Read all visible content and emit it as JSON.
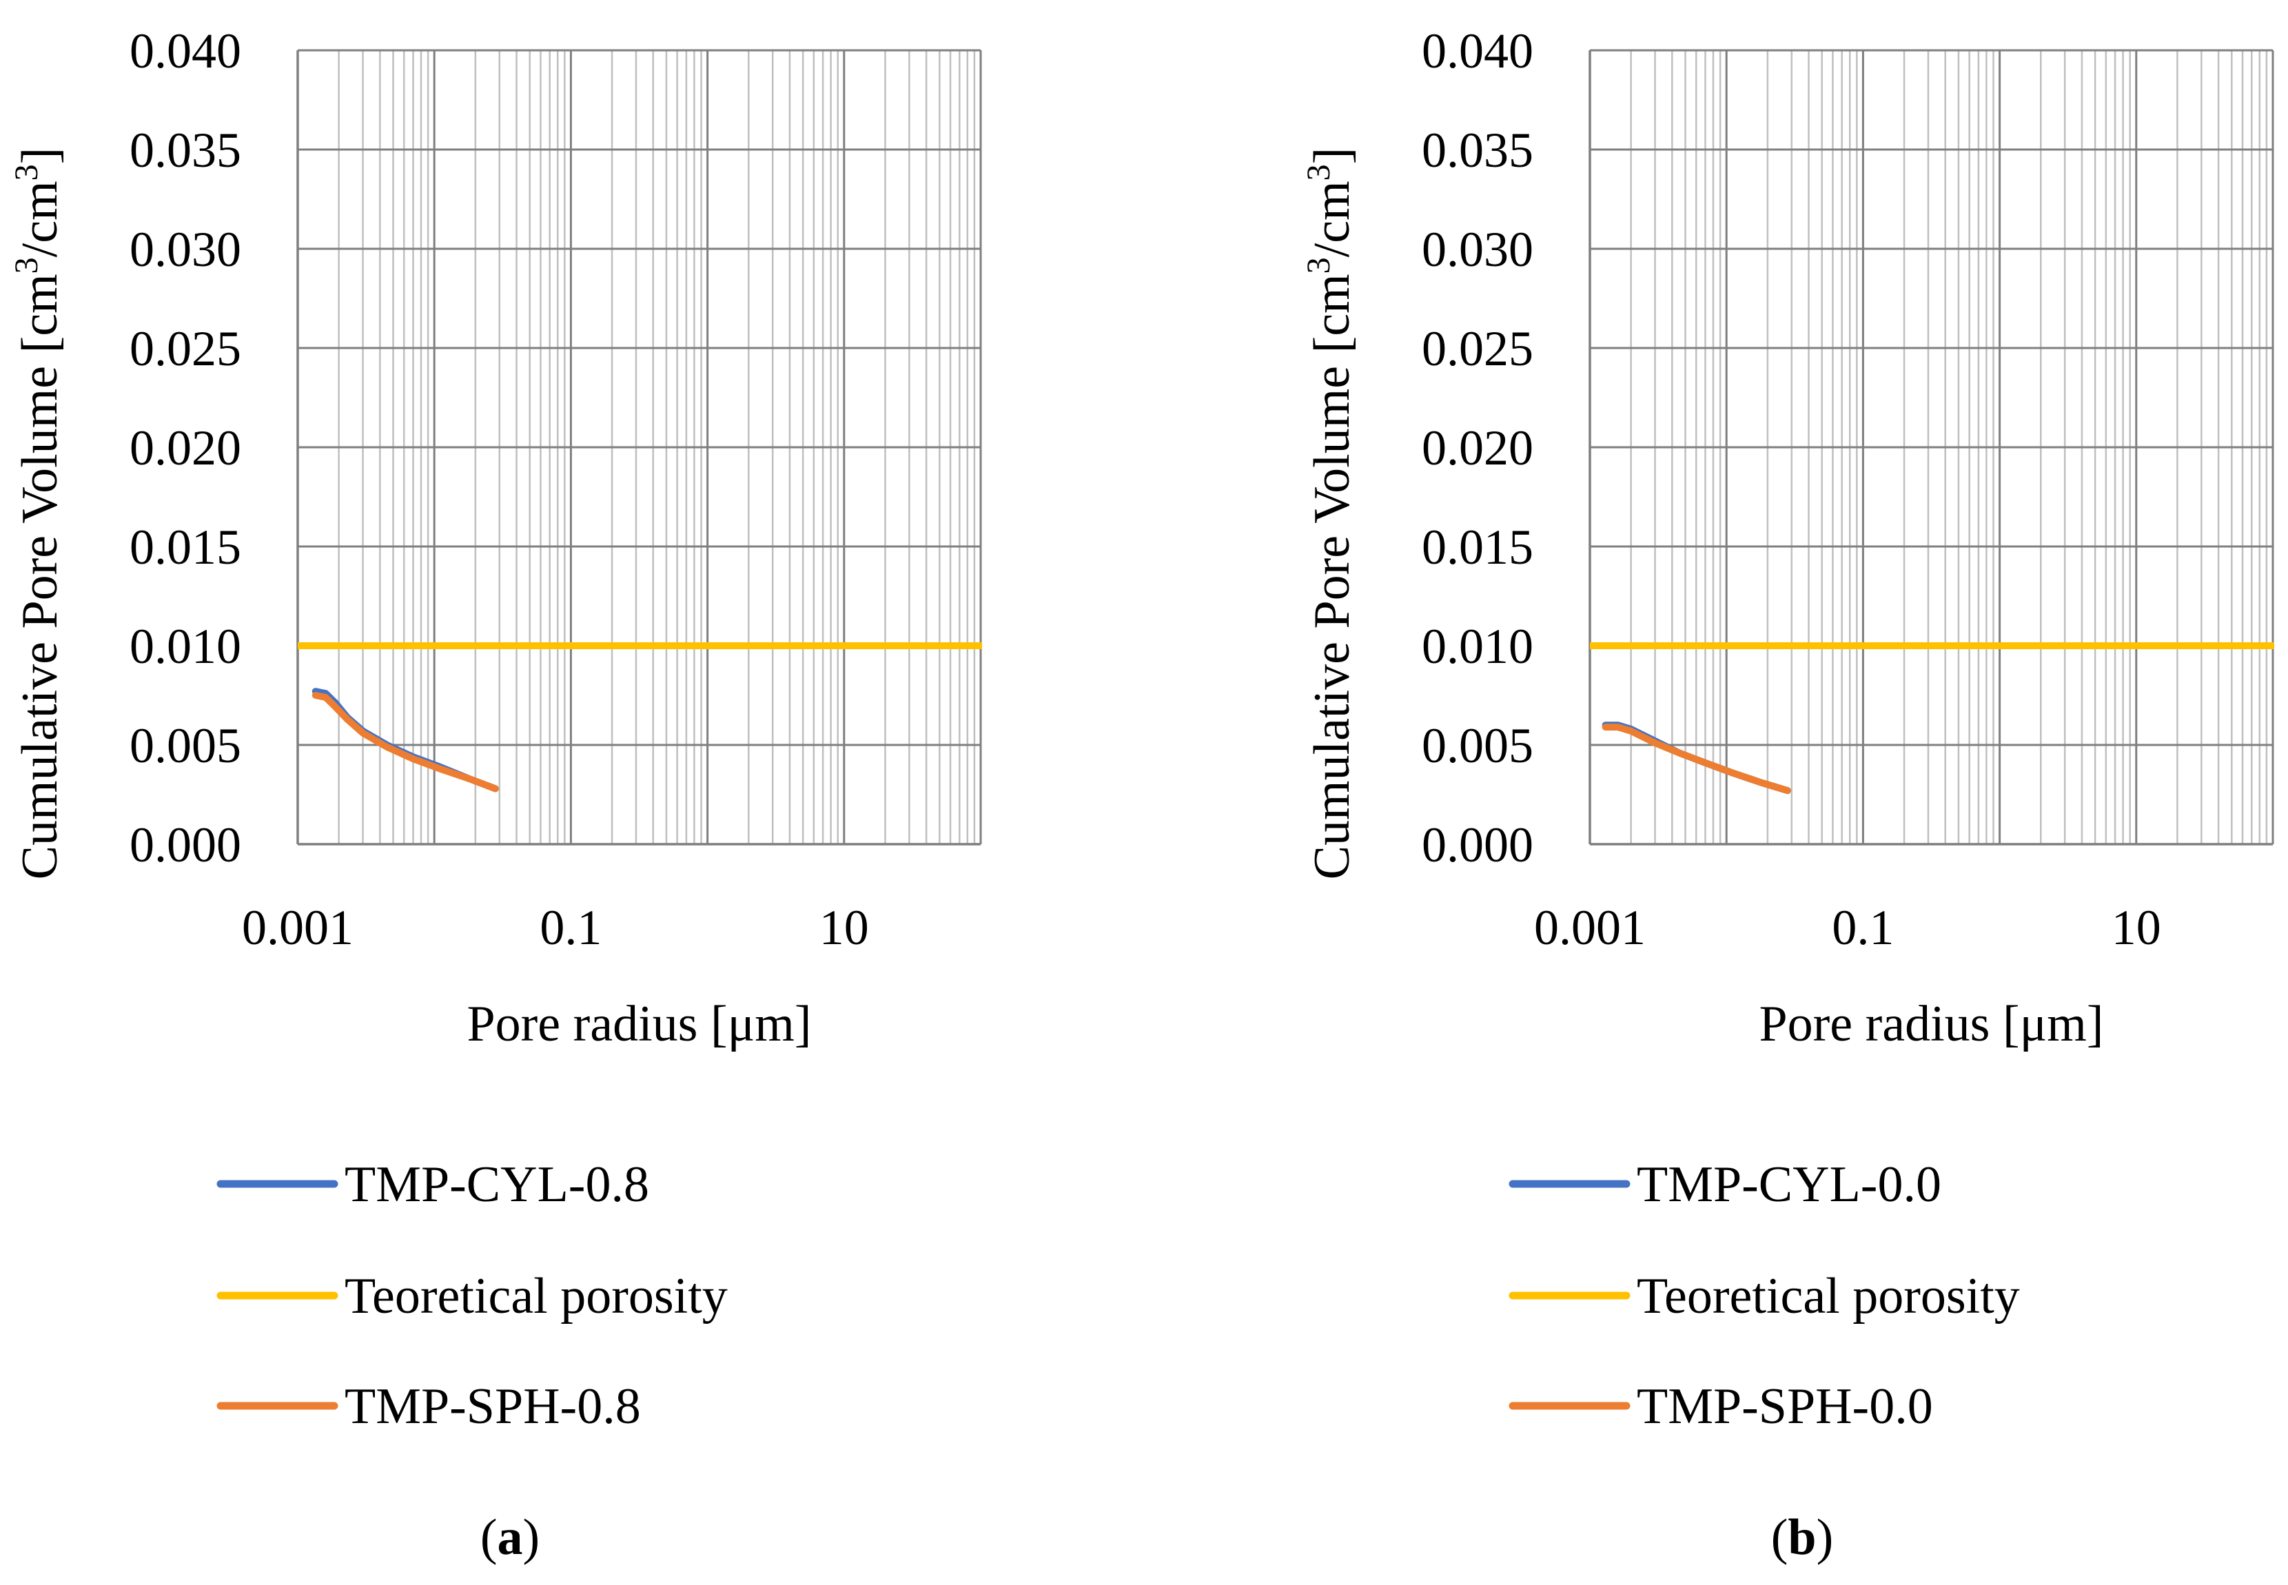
{
  "chart_data": [
    {
      "type": "line",
      "panel": "a",
      "caption_open": "(",
      "caption_letter": "a",
      "caption_close": ")",
      "xlabel": "Pore radius [μm]",
      "ylabel": "Cumulative Pore Volume [cm3/cm3]",
      "ylabel_parts": [
        "Cumulative Pore Volume [cm",
        "3",
        "/cm",
        "3",
        "]"
      ],
      "xscale": "log",
      "xlim": [
        0.001,
        100
      ],
      "ylim": [
        0.0,
        0.04
      ],
      "x_tick_values": [
        0.001,
        0.1,
        10
      ],
      "x_tick_labels": [
        "0.001",
        "0.1",
        "10"
      ],
      "y_tick_values": [
        0.0,
        0.005,
        0.01,
        0.015,
        0.02,
        0.025,
        0.03,
        0.035,
        0.04
      ],
      "y_tick_labels": [
        "0.000",
        "0.005",
        "0.010",
        "0.015",
        "0.020",
        "0.025",
        "0.030",
        "0.035",
        "0.040"
      ],
      "grid": true,
      "legend_position": "below",
      "series": [
        {
          "name": "TMP-CYL-0.8",
          "color": "#4472C4",
          "x": [
            0.00135,
            0.0016,
            0.0019,
            0.0023,
            0.003,
            0.0045,
            0.007,
            0.011,
            0.018,
            0.028
          ],
          "y": [
            0.0077,
            0.0076,
            0.0071,
            0.0064,
            0.0057,
            0.005,
            0.0044,
            0.0039,
            0.0033,
            0.0028
          ]
        },
        {
          "name": "Teoretical porosity",
          "color": "#FFC000",
          "x": [
            0.001,
            100
          ],
          "y": [
            0.01,
            0.01
          ]
        },
        {
          "name": "TMP-SPH-0.8",
          "color": "#ED7D31",
          "x": [
            0.00135,
            0.0016,
            0.0019,
            0.0023,
            0.003,
            0.0045,
            0.007,
            0.011,
            0.018,
            0.028
          ],
          "y": [
            0.0075,
            0.0074,
            0.0069,
            0.0063,
            0.0056,
            0.0049,
            0.0043,
            0.0038,
            0.0033,
            0.0028
          ]
        }
      ]
    },
    {
      "type": "line",
      "panel": "b",
      "caption_open": "(",
      "caption_letter": "b",
      "caption_close": ")",
      "xlabel": "Pore radius [μm]",
      "ylabel": "Cumulative Pore Volume [cm3/cm3]",
      "ylabel_parts": [
        "Cumulative Pore Volume [cm",
        "3",
        "/cm",
        "3",
        "]"
      ],
      "xscale": "log",
      "xlim": [
        0.001,
        100
      ],
      "ylim": [
        0.0,
        0.04
      ],
      "x_tick_values": [
        0.001,
        0.1,
        10
      ],
      "x_tick_labels": [
        "0.001",
        "0.1",
        "10"
      ],
      "y_tick_values": [
        0.0,
        0.005,
        0.01,
        0.015,
        0.02,
        0.025,
        0.03,
        0.035,
        0.04
      ],
      "y_tick_labels": [
        "0.000",
        "0.005",
        "0.010",
        "0.015",
        "0.020",
        "0.025",
        "0.030",
        "0.035",
        "0.040"
      ],
      "grid": true,
      "legend_position": "below",
      "series": [
        {
          "name": "TMP-CYL-0.0",
          "color": "#4472C4",
          "x": [
            0.0013,
            0.0016,
            0.002,
            0.003,
            0.0045,
            0.007,
            0.011,
            0.018,
            0.028
          ],
          "y": [
            0.006,
            0.006,
            0.0058,
            0.0052,
            0.0046,
            0.0041,
            0.0036,
            0.0031,
            0.0027
          ]
        },
        {
          "name": "Teoretical porosity",
          "color": "#FFC000",
          "x": [
            0.001,
            100
          ],
          "y": [
            0.01,
            0.01
          ]
        },
        {
          "name": "TMP-SPH-0.0",
          "color": "#ED7D31",
          "x": [
            0.0013,
            0.0016,
            0.002,
            0.003,
            0.0045,
            0.007,
            0.011,
            0.018,
            0.028
          ],
          "y": [
            0.0059,
            0.0059,
            0.0057,
            0.0051,
            0.0046,
            0.0041,
            0.0036,
            0.0031,
            0.0027
          ]
        }
      ]
    }
  ]
}
